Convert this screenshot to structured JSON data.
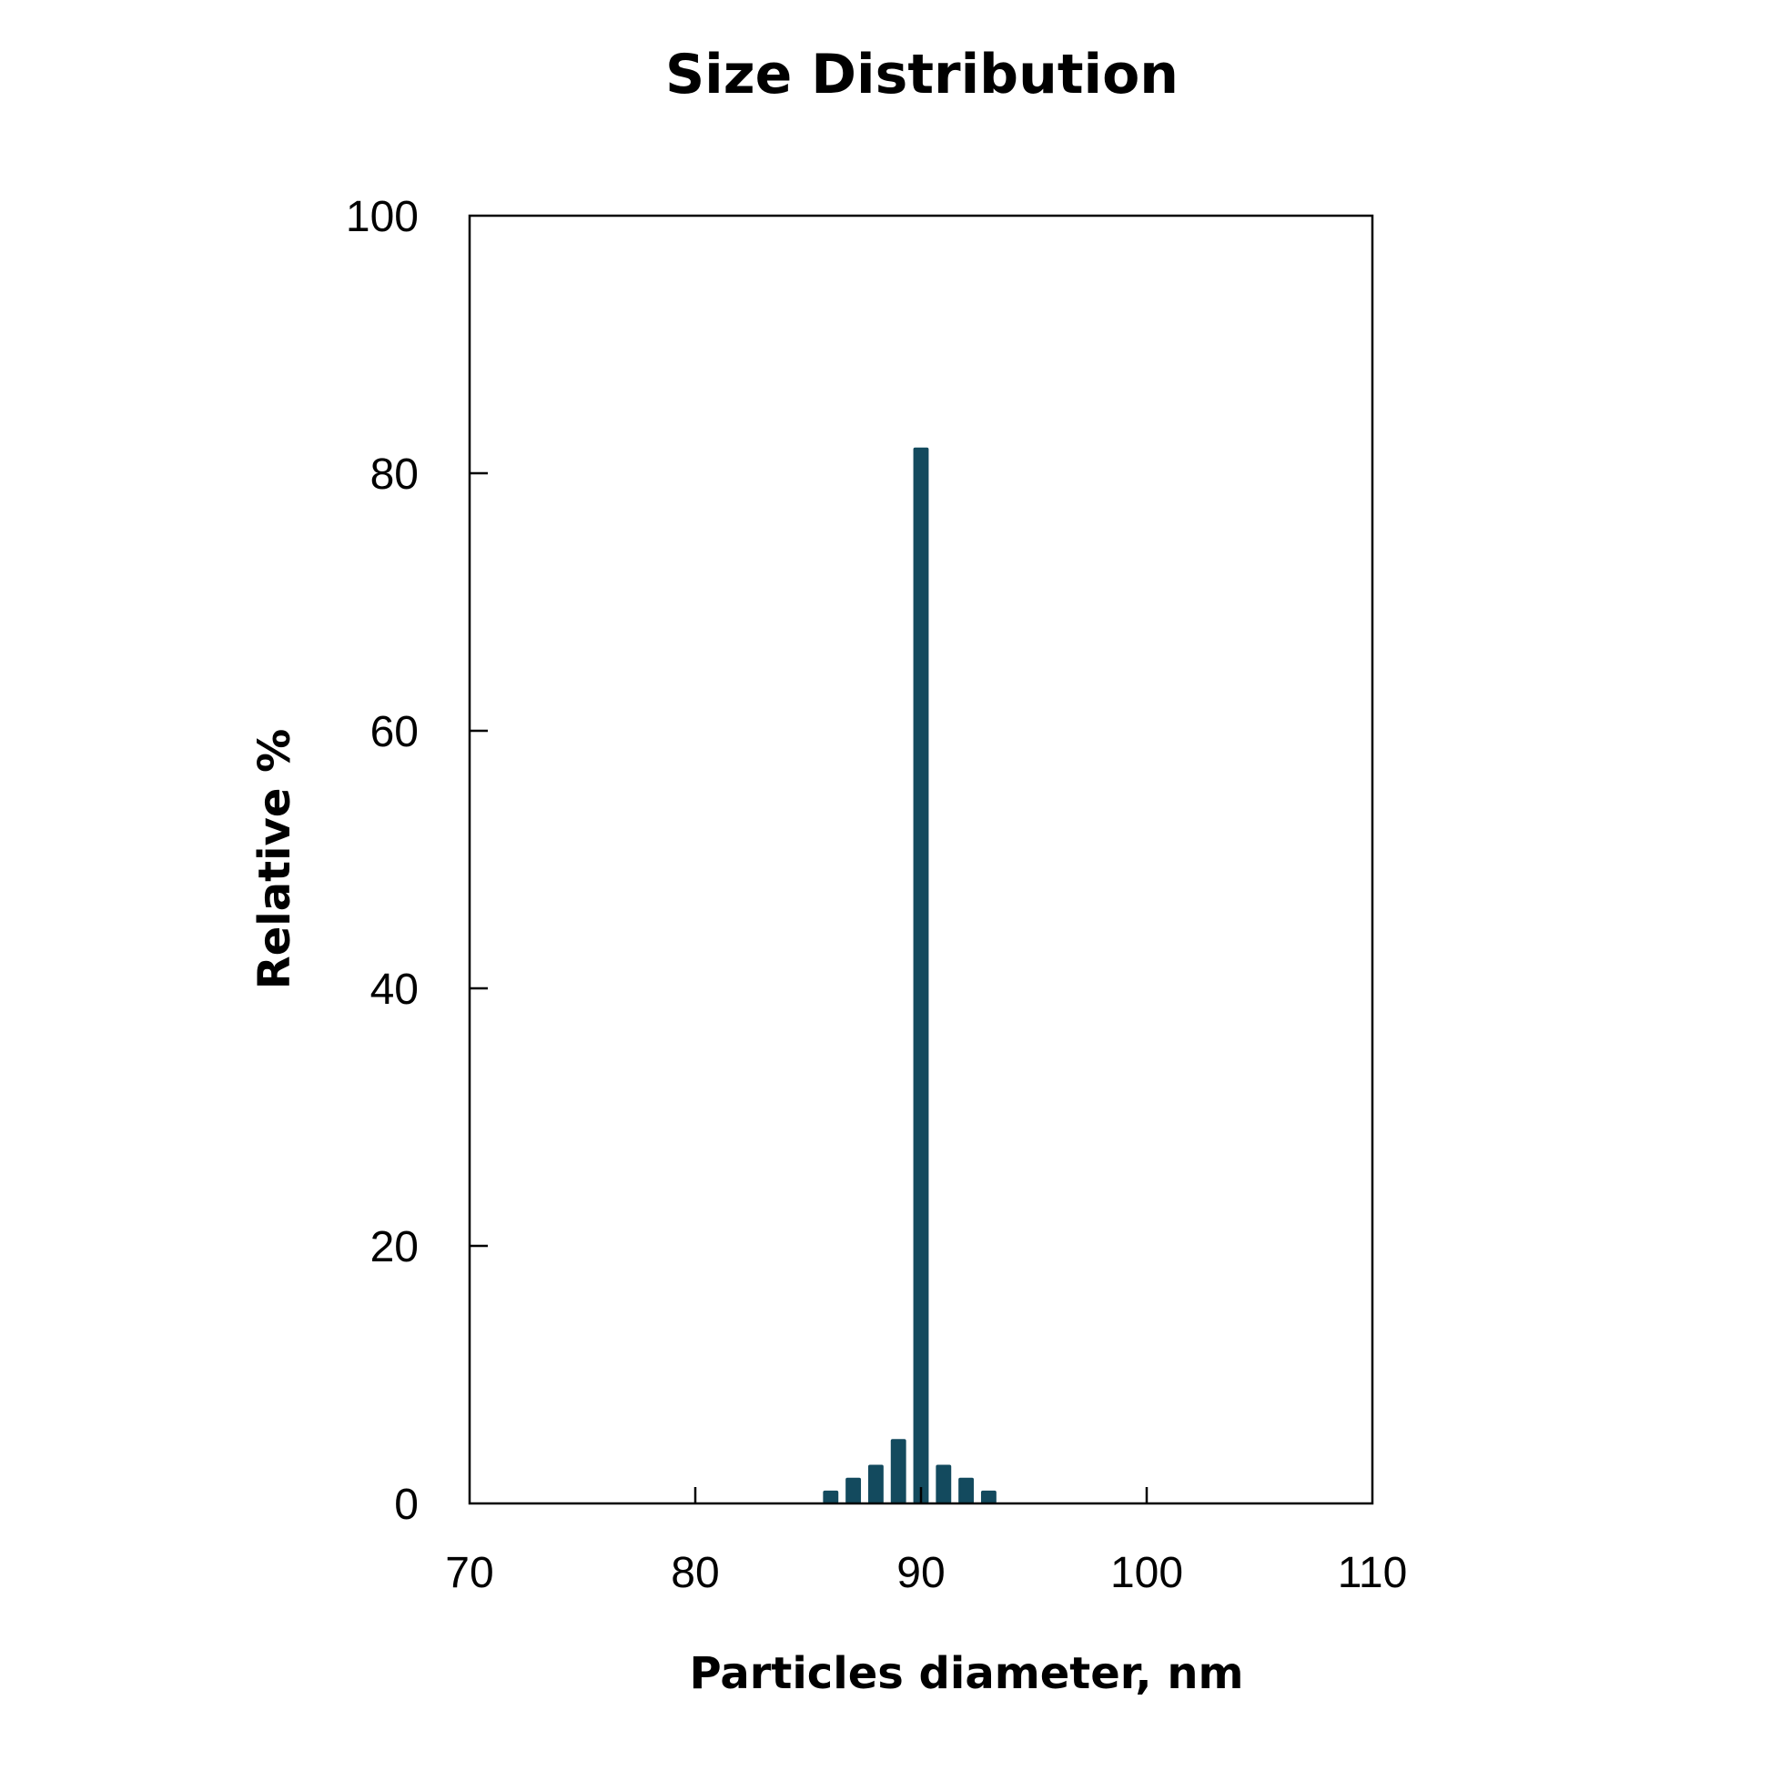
{
  "chart_data": {
    "type": "bar",
    "title": "Size Distribution",
    "xlabel": "Particles diameter, nm",
    "ylabel": "Relative %",
    "xlim": [
      70,
      110
    ],
    "ylim": [
      0,
      100
    ],
    "xticks": [
      70,
      80,
      90,
      100,
      110
    ],
    "yticks": [
      0,
      20,
      40,
      60,
      80,
      100
    ],
    "x": [
      86,
      87,
      88,
      89,
      90,
      91,
      92,
      93
    ],
    "values": [
      1,
      2,
      3,
      5,
      82,
      3,
      2,
      1
    ],
    "bar_color": "#134a5e",
    "grid": false,
    "legend": "none"
  }
}
